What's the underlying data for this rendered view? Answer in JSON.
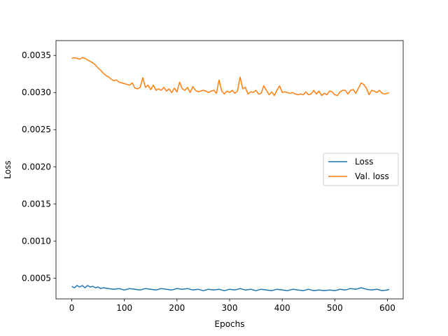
{
  "chart_data": {
    "type": "line",
    "title": "",
    "xlabel": "Epochs",
    "ylabel": "Loss",
    "xlim": [
      -30,
      630
    ],
    "ylim": [
      0.00022,
      0.0037
    ],
    "xticks": [
      0,
      100,
      200,
      300,
      400,
      500,
      600
    ],
    "xtick_labels": [
      "0",
      "100",
      "200",
      "300",
      "400",
      "500",
      "600"
    ],
    "yticks": [
      0.0005,
      0.001,
      0.0015,
      0.002,
      0.0025,
      0.003,
      0.0035
    ],
    "ytick_labels": [
      "0.0005",
      "0.0010",
      "0.0015",
      "0.0020",
      "0.0025",
      "0.0030",
      "0.0035"
    ],
    "grid": false,
    "legend_position": "center-right",
    "series": [
      {
        "name": "Loss",
        "color": "#1f77b4",
        "x": [
          0,
          5,
          10,
          15,
          20,
          25,
          30,
          35,
          40,
          45,
          50,
          55,
          60,
          70,
          80,
          90,
          100,
          110,
          120,
          130,
          140,
          150,
          160,
          170,
          180,
          190,
          200,
          210,
          220,
          230,
          240,
          250,
          260,
          270,
          280,
          290,
          300,
          310,
          320,
          330,
          340,
          350,
          360,
          370,
          380,
          390,
          400,
          410,
          420,
          430,
          440,
          450,
          460,
          470,
          480,
          490,
          500,
          510,
          520,
          530,
          540,
          550,
          560,
          570,
          580,
          590,
          600,
          603
        ],
        "y": [
          0.00039,
          0.00037,
          0.0004,
          0.00038,
          0.0004,
          0.00037,
          0.0004,
          0.00038,
          0.00039,
          0.00037,
          0.00038,
          0.00036,
          0.00037,
          0.00036,
          0.00035,
          0.00036,
          0.00034,
          0.00036,
          0.00035,
          0.00034,
          0.00036,
          0.00035,
          0.00034,
          0.00036,
          0.00035,
          0.00034,
          0.00036,
          0.00035,
          0.00036,
          0.00034,
          0.00035,
          0.00033,
          0.00035,
          0.00034,
          0.00035,
          0.00033,
          0.00035,
          0.00034,
          0.00036,
          0.00034,
          0.00035,
          0.00033,
          0.00035,
          0.00034,
          0.00033,
          0.00035,
          0.00034,
          0.00033,
          0.00035,
          0.00034,
          0.00033,
          0.00035,
          0.00033,
          0.00034,
          0.00033,
          0.00034,
          0.00033,
          0.00035,
          0.00034,
          0.00036,
          0.00035,
          0.00037,
          0.00035,
          0.00034,
          0.00035,
          0.00033,
          0.00034,
          0.00035
        ]
      },
      {
        "name": "Val. loss",
        "color": "#ff7f0e",
        "x": [
          0,
          5,
          10,
          15,
          20,
          25,
          30,
          35,
          40,
          45,
          50,
          55,
          60,
          65,
          70,
          75,
          80,
          85,
          90,
          95,
          100,
          105,
          110,
          115,
          120,
          125,
          130,
          135,
          140,
          145,
          150,
          155,
          160,
          165,
          170,
          175,
          180,
          185,
          190,
          195,
          200,
          205,
          210,
          215,
          220,
          225,
          230,
          235,
          240,
          245,
          250,
          255,
          260,
          265,
          270,
          275,
          280,
          285,
          290,
          295,
          300,
          305,
          310,
          315,
          320,
          325,
          330,
          335,
          340,
          345,
          350,
          355,
          360,
          365,
          370,
          375,
          380,
          385,
          390,
          395,
          400,
          405,
          410,
          415,
          420,
          425,
          430,
          435,
          440,
          445,
          450,
          455,
          460,
          465,
          470,
          475,
          480,
          485,
          490,
          495,
          500,
          505,
          510,
          515,
          520,
          525,
          530,
          535,
          540,
          545,
          550,
          555,
          560,
          565,
          570,
          575,
          580,
          585,
          590,
          595,
          600,
          603
        ],
        "y": [
          0.00346,
          0.00347,
          0.00346,
          0.00345,
          0.00347,
          0.00346,
          0.00344,
          0.00342,
          0.0034,
          0.00337,
          0.00333,
          0.0033,
          0.00326,
          0.00323,
          0.00321,
          0.00318,
          0.00316,
          0.00317,
          0.00314,
          0.00313,
          0.00312,
          0.00311,
          0.0031,
          0.00313,
          0.00306,
          0.00305,
          0.00307,
          0.0032,
          0.00307,
          0.0031,
          0.00304,
          0.0031,
          0.00303,
          0.00305,
          0.00303,
          0.00307,
          0.00302,
          0.00305,
          0.003,
          0.00306,
          0.00301,
          0.00314,
          0.00305,
          0.00303,
          0.00307,
          0.003,
          0.00308,
          0.00303,
          0.00301,
          0.00302,
          0.00303,
          0.00302,
          0.003,
          0.00302,
          0.00303,
          0.00299,
          0.00317,
          0.00302,
          0.00298,
          0.00302,
          0.003,
          0.00303,
          0.00299,
          0.00302,
          0.00321,
          0.00305,
          0.00307,
          0.00298,
          0.00301,
          0.003,
          0.00303,
          0.00298,
          0.00299,
          0.00309,
          0.00303,
          0.00297,
          0.00301,
          0.00296,
          0.00303,
          0.00309,
          0.003,
          0.00301,
          0.003,
          0.00299,
          0.003,
          0.00298,
          0.00297,
          0.00298,
          0.00297,
          0.00301,
          0.00297,
          0.00298,
          0.00303,
          0.00298,
          0.00302,
          0.00296,
          0.00299,
          0.00297,
          0.00302,
          0.00301,
          0.00297,
          0.00296,
          0.00301,
          0.00303,
          0.00303,
          0.00298,
          0.00303,
          0.00304,
          0.00299,
          0.00306,
          0.00313,
          0.00311,
          0.00306,
          0.00297,
          0.00303,
          0.00302,
          0.003,
          0.00303,
          0.00299,
          0.00298,
          0.00299,
          0.003
        ]
      }
    ]
  }
}
